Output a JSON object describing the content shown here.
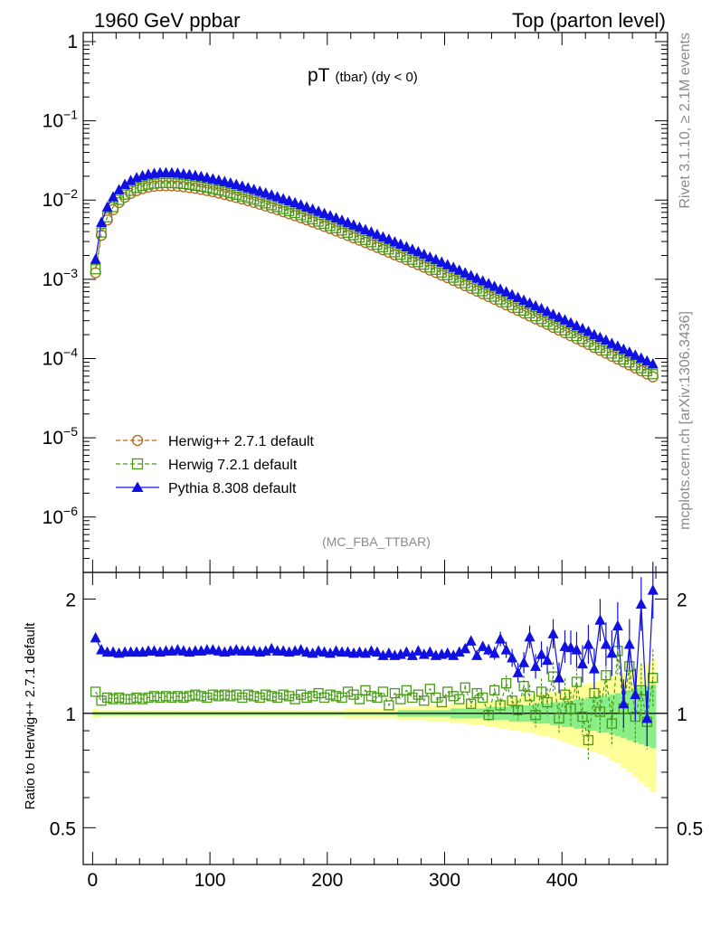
{
  "header": {
    "left": "1960 GeV ppbar",
    "right": "Top (parton level)"
  },
  "side_labels": {
    "rivet": "Rivet 3.1.10, ≥ 2.1M events",
    "mcplots": "mcplots.cern.ch [arXiv:1306.3436]"
  },
  "analysis_tag": "(MC_FBA_TTBAR)",
  "colors": {
    "herwigpp": "#b5651d",
    "herwig7": "#4a9a1a",
    "pythia": "#1010e0",
    "band_yellow": "#ffff99",
    "band_green": "#88ee88"
  },
  "chart_data": [
    {
      "type": "scatter",
      "title": "pT",
      "title_sub": "(tbar) (dy < 0)",
      "yscale": "log",
      "ylim": [
        2e-07,
        1.3
      ],
      "xlim": [
        -8,
        490
      ],
      "yticks": [
        {
          "label_base": "1",
          "label_exp": ""
        },
        {
          "label_base": "10",
          "label_exp": "−1"
        },
        {
          "label_base": "10",
          "label_exp": "−2"
        },
        {
          "label_base": "10",
          "label_exp": "−3"
        },
        {
          "label_base": "10",
          "label_exp": "−4"
        },
        {
          "label_base": "10",
          "label_exp": "−5"
        },
        {
          "label_base": "10",
          "label_exp": "−6"
        }
      ],
      "legend": {
        "position": "bottom-left",
        "entries": [
          {
            "label": "Herwig++ 2.7.1 default"
          },
          {
            "label": "Herwig 7.2.1 default"
          },
          {
            "label": "Pythia 8.308 default"
          }
        ]
      },
      "x": [
        2.5,
        7.5,
        12.5,
        17.5,
        22.5,
        27.5,
        32.5,
        37.5,
        42.5,
        47.5,
        52.5,
        57.5,
        62.5,
        67.5,
        72.5,
        77.5,
        82.5,
        87.5,
        92.5,
        97.5,
        102.5,
        107.5,
        112.5,
        117.5,
        122.5,
        127.5,
        132.5,
        137.5,
        142.5,
        147.5,
        152.5,
        157.5,
        162.5,
        167.5,
        172.5,
        177.5,
        182.5,
        187.5,
        192.5,
        197.5,
        202.5,
        207.5,
        212.5,
        217.5,
        222.5,
        227.5,
        232.5,
        237.5,
        242.5,
        247.5,
        252.5,
        257.5,
        262.5,
        267.5,
        272.5,
        277.5,
        282.5,
        287.5,
        292.5,
        297.5,
        302.5,
        307.5,
        312.5,
        317.5,
        322.5,
        327.5,
        332.5,
        337.5,
        342.5,
        347.5,
        352.5,
        357.5,
        362.5,
        367.5,
        372.5,
        377.5,
        382.5,
        387.5,
        392.5,
        397.5,
        402.5,
        407.5,
        412.5,
        417.5,
        422.5,
        427.5,
        432.5,
        437.5,
        442.5,
        447.5,
        452.5,
        457.5,
        462.5,
        467.5,
        472.5,
        477.5
      ],
      "series": [
        {
          "name": "Herwig++ 2.7.1 default",
          "values": [
            0.00121,
            0.0036,
            0.00561,
            0.00756,
            0.00931,
            0.01085,
            0.01214,
            0.01318,
            0.01398,
            0.01456,
            0.01494,
            0.01515,
            0.01521,
            0.01515,
            0.01499,
            0.01474,
            0.01442,
            0.01406,
            0.01365,
            0.01321,
            0.01275,
            0.01227,
            0.01179,
            0.01129,
            0.0108,
            0.01031,
            0.00982,
            0.00935,
            0.00888,
            0.00842,
            0.00798,
            0.00755,
            0.00713,
            0.00673,
            0.00635,
            0.00598,
            0.00563,
            0.00529,
            0.00497,
            0.00466,
            0.00437,
            0.00409,
            0.00383,
            0.00358,
            0.00334,
            0.00312,
            0.00291,
            0.00272,
            0.00253,
            0.00236,
            0.0022,
            0.00204,
            0.0019,
            0.00177,
            0.00164,
            0.00153,
            0.00142,
            0.00131,
            0.00122,
            0.00113,
            0.00105,
            0.000969,
            0.000897,
            0.00083,
            0.000767,
            0.000709,
            0.000656,
            0.000606,
            0.00056,
            0.000517,
            0.000477,
            0.00044,
            0.000406,
            0.000374,
            0.000345,
            0.000318,
            0.000293,
            0.00027,
            0.000248,
            0.000229,
            0.000211,
            0.000194,
            0.000178,
            0.000164,
            0.000151,
            0.000138,
            0.000127,
            0.000117,
            0.000107,
            9.85e-05,
            9.05e-05,
            8.3e-05,
            7.62e-05,
            6.99e-05,
            6.41e-05,
            5.88e-05
          ]
        },
        {
          "name": "Herwig 7.2.1 default",
          "values": [
            0.00134,
            0.00389,
            0.00606,
            0.00816,
            0.01006,
            0.01172,
            0.01311,
            0.01424,
            0.0151,
            0.01572,
            0.01613,
            0.01636,
            0.01643,
            0.01636,
            0.01619,
            0.01592,
            0.01557,
            0.01518,
            0.01474,
            0.01427,
            0.01377,
            0.01325,
            0.01273,
            0.01219,
            0.01166,
            0.01113,
            0.01061,
            0.0101,
            0.00959,
            0.00909,
            0.00862,
            0.00815,
            0.0077,
            0.00727,
            0.00686,
            0.00646,
            0.00608,
            0.00571,
            0.00537,
            0.00503,
            0.00472,
            0.00442,
            0.00414,
            0.00387,
            0.00361,
            0.00337,
            0.00314,
            0.00294,
            0.00273,
            0.00255,
            0.00238,
            0.0022,
            0.00205,
            0.00191,
            0.00177,
            0.00165,
            0.00153,
            0.00141,
            0.00132,
            0.00122,
            0.00113,
            0.00105,
            0.000969,
            0.000896,
            0.000828,
            0.000766,
            0.000708,
            0.000654,
            0.000605,
            0.000558,
            0.000515,
            0.000475,
            0.000438,
            0.000404,
            0.000373,
            0.000343,
            0.000316,
            0.000292,
            0.000268,
            0.000247,
            0.000228,
            0.00021,
            0.000192,
            0.000177,
            0.000163,
            0.000149,
            0.000137,
            0.000126,
            0.000116,
            0.000106,
            9.77e-05,
            8.96e-05,
            8.23e-05,
            7.55e-05,
            6.92e-05,
            6.35e-05
          ]
        },
        {
          "name": "Pythia 8.308 default",
          "values": [
            0.00178,
            0.00522,
            0.00813,
            0.01096,
            0.0135,
            0.01573,
            0.0176,
            0.01911,
            0.02027,
            0.02111,
            0.02166,
            0.02197,
            0.02205,
            0.02197,
            0.02174,
            0.02137,
            0.02091,
            0.02039,
            0.01979,
            0.01915,
            0.01849,
            0.01779,
            0.0171,
            0.01637,
            0.01566,
            0.01495,
            0.01424,
            0.01356,
            0.01288,
            0.01221,
            0.01157,
            0.01095,
            0.01034,
            0.00976,
            0.00921,
            0.00867,
            0.00816,
            0.00767,
            0.00721,
            0.00676,
            0.00634,
            0.00593,
            0.00555,
            0.00519,
            0.00484,
            0.00452,
            0.00422,
            0.00394,
            0.00367,
            0.00342,
            0.00319,
            0.00296,
            0.00276,
            0.00257,
            0.00238,
            0.00222,
            0.00206,
            0.0019,
            0.00177,
            0.00164,
            0.00152,
            0.00141,
            0.0013,
            0.0012,
            0.00111,
            0.00103,
            0.000951,
            0.000879,
            0.000812,
            0.00075,
            0.000692,
            0.000638,
            0.000589,
            0.000542,
            0.0005,
            0.000461,
            0.000425,
            0.000392,
            0.00036,
            0.000332,
            0.000306,
            0.000281,
            0.000258,
            0.000238,
            0.000219,
            0.0002,
            0.000184,
            0.00017,
            0.000155,
            0.000143,
            0.000131,
            0.00012,
            0.00011,
            0.000101,
            9.29e-05,
            8.53e-05
          ]
        }
      ]
    },
    {
      "type": "scatter",
      "ylabel": "Ratio to Herwig++ 2.7.1 default",
      "ylim": [
        0.4,
        2.35
      ],
      "xlim": [
        -8,
        490
      ],
      "xticks": [
        "0",
        "100",
        "200",
        "300",
        "400"
      ],
      "yticks": [
        "2",
        "1",
        "0.5"
      ],
      "ratio_herwig7": [
        1.14,
        1.08,
        1.1,
        1.09,
        1.1,
        1.09,
        1.09,
        1.1,
        1.09,
        1.1,
        1.11,
        1.1,
        1.11,
        1.1,
        1.11,
        1.1,
        1.11,
        1.12,
        1.11,
        1.1,
        1.12,
        1.11,
        1.12,
        1.11,
        1.12,
        1.1,
        1.12,
        1.11,
        1.1,
        1.12,
        1.11,
        1.1,
        1.12,
        1.11,
        1.09,
        1.12,
        1.1,
        1.11,
        1.13,
        1.1,
        1.12,
        1.11,
        1.1,
        1.14,
        1.12,
        1.09,
        1.15,
        1.11,
        1.1,
        1.14,
        1.05,
        1.13,
        1.09,
        1.15,
        1.1,
        1.12,
        1.08,
        1.16,
        1.1,
        1.07,
        1.14,
        1.11,
        1.09,
        1.17,
        1.06,
        1.13,
        1.1,
        0.99,
        1.15,
        1.05,
        1.2,
        1.08,
        1.02,
        1.18,
        1.11,
        0.99,
        1.14,
        1.07,
        1.25,
        0.97,
        1.12,
        1.03,
        1.21,
        0.98,
        0.85,
        1.13,
        1.01,
        1.26,
        0.94,
        1.46,
        1.03,
        1.33,
        0.98,
        1.15,
        0.95,
        1.24
      ],
      "ratio_pythia": [
        1.58,
        1.47,
        1.45,
        1.45,
        1.44,
        1.45,
        1.45,
        1.45,
        1.45,
        1.46,
        1.46,
        1.45,
        1.46,
        1.46,
        1.47,
        1.46,
        1.45,
        1.46,
        1.46,
        1.47,
        1.47,
        1.46,
        1.45,
        1.46,
        1.47,
        1.46,
        1.46,
        1.46,
        1.45,
        1.46,
        1.48,
        1.46,
        1.46,
        1.45,
        1.46,
        1.47,
        1.45,
        1.44,
        1.46,
        1.45,
        1.44,
        1.46,
        1.45,
        1.45,
        1.44,
        1.45,
        1.44,
        1.46,
        1.45,
        1.42,
        1.44,
        1.42,
        1.43,
        1.45,
        1.42,
        1.46,
        1.43,
        1.45,
        1.42,
        1.43,
        1.44,
        1.42,
        1.45,
        1.48,
        1.55,
        1.42,
        1.5,
        1.47,
        1.44,
        1.57,
        1.47,
        1.4,
        1.28,
        1.36,
        1.59,
        1.33,
        1.43,
        1.38,
        1.62,
        1.24,
        1.5,
        1.49,
        1.47,
        1.35,
        1.52,
        1.31,
        1.76,
        1.52,
        1.44,
        1.7,
        1.06,
        1.52,
        1.12,
        1.94,
        0.97,
        2.11
      ],
      "band_yellow_half": [
        0.03,
        0.02,
        0.02,
        0.02,
        0.02,
        0.02,
        0.02,
        0.02,
        0.02,
        0.02,
        0.02,
        0.02,
        0.02,
        0.02,
        0.02,
        0.02,
        0.02,
        0.02,
        0.02,
        0.02,
        0.02,
        0.02,
        0.02,
        0.02,
        0.02,
        0.02,
        0.02,
        0.02,
        0.02,
        0.02,
        0.02,
        0.02,
        0.02,
        0.02,
        0.02,
        0.02,
        0.02,
        0.02,
        0.02,
        0.02,
        0.02,
        0.02,
        0.02,
        0.03,
        0.03,
        0.03,
        0.03,
        0.03,
        0.03,
        0.03,
        0.03,
        0.03,
        0.04,
        0.04,
        0.04,
        0.04,
        0.04,
        0.05,
        0.05,
        0.05,
        0.05,
        0.06,
        0.06,
        0.06,
        0.07,
        0.07,
        0.07,
        0.08,
        0.08,
        0.09,
        0.09,
        0.1,
        0.1,
        0.11,
        0.11,
        0.12,
        0.13,
        0.13,
        0.14,
        0.15,
        0.16,
        0.17,
        0.18,
        0.19,
        0.2,
        0.21,
        0.22,
        0.23,
        0.25,
        0.26,
        0.28,
        0.3,
        0.32,
        0.34,
        0.36,
        0.38
      ],
      "band_green_half": [
        0.01,
        0.01,
        0.01,
        0.01,
        0.01,
        0.01,
        0.01,
        0.01,
        0.01,
        0.01,
        0.01,
        0.01,
        0.01,
        0.01,
        0.01,
        0.01,
        0.01,
        0.01,
        0.01,
        0.01,
        0.01,
        0.01,
        0.01,
        0.01,
        0.01,
        0.01,
        0.01,
        0.01,
        0.01,
        0.01,
        0.01,
        0.01,
        0.01,
        0.01,
        0.01,
        0.01,
        0.01,
        0.01,
        0.01,
        0.01,
        0.01,
        0.01,
        0.01,
        0.01,
        0.01,
        0.01,
        0.01,
        0.01,
        0.01,
        0.01,
        0.01,
        0.01,
        0.02,
        0.02,
        0.02,
        0.02,
        0.02,
        0.02,
        0.02,
        0.02,
        0.02,
        0.03,
        0.03,
        0.03,
        0.03,
        0.03,
        0.03,
        0.04,
        0.04,
        0.04,
        0.04,
        0.05,
        0.05,
        0.05,
        0.05,
        0.06,
        0.06,
        0.06,
        0.07,
        0.07,
        0.08,
        0.08,
        0.09,
        0.09,
        0.1,
        0.1,
        0.11,
        0.11,
        0.12,
        0.13,
        0.14,
        0.15,
        0.16,
        0.17,
        0.18,
        0.19
      ]
    }
  ]
}
